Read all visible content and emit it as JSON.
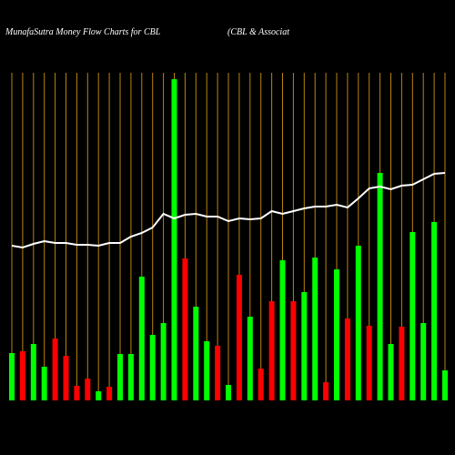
{
  "chart_data": {
    "type": "bar",
    "title": "MunafaSutra  Money Flow  Charts for CBL",
    "subtitle": "(CBL  & Associat",
    "values": [
      52,
      54,
      62,
      37,
      68,
      49,
      16,
      24,
      10,
      15,
      51,
      51,
      136,
      72,
      85,
      353,
      156,
      103,
      65,
      60,
      17,
      138,
      92,
      35,
      109,
      154,
      109,
      119,
      157,
      20,
      144,
      90,
      170,
      82,
      250,
      62,
      81,
      185,
      85,
      196,
      33
    ],
    "colors": [
      "#00ff00",
      "#ff0000",
      "#00ff00",
      "#00ff00",
      "#ff0000",
      "#ff0000",
      "#ff0000",
      "#ff0000",
      "#00ff00",
      "#ff0000",
      "#00ff00",
      "#00ff00",
      "#00ff00",
      "#00ff00",
      "#00ff00",
      "#00ff00",
      "#ff0000",
      "#00ff00",
      "#00ff00",
      "#ff0000",
      "#00ff00",
      "#ff0000",
      "#00ff00",
      "#ff0000",
      "#ff0000",
      "#00ff00",
      "#ff0000",
      "#00ff00",
      "#00ff00",
      "#ff0000",
      "#00ff00",
      "#ff0000",
      "#00ff00",
      "#ff0000",
      "#00ff00",
      "#00ff00",
      "#ff0000",
      "#00ff00",
      "#00ff00",
      "#00ff00",
      "#00ff00"
    ],
    "line_values": [
      170,
      168,
      172,
      175,
      173,
      173,
      171,
      171,
      170,
      173,
      173,
      180,
      184,
      190,
      205,
      200,
      204,
      205,
      202,
      202,
      197,
      200,
      199,
      200,
      208,
      205,
      208,
      211,
      213,
      213,
      215,
      212,
      222,
      233,
      235,
      232,
      236,
      237,
      243,
      249,
      250
    ],
    "line_color": "#ffffff",
    "grid_color": "#b8860b"
  }
}
